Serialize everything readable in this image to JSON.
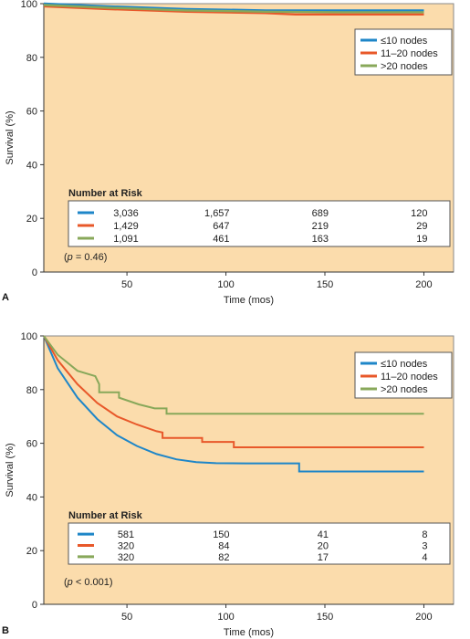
{
  "colors": {
    "background": "#fbdcac",
    "series": [
      "#1e86c8",
      "#e8582a",
      "#88a85a"
    ]
  },
  "chart_data": [
    {
      "type": "line",
      "panel_label": "A",
      "xlabel": "Time (mos)",
      "ylabel": "Survival (%)",
      "xlim": [
        8,
        215
      ],
      "ylim": [
        0,
        100
      ],
      "xticks": [
        50,
        100,
        150,
        200
      ],
      "yticks": [
        0,
        20,
        40,
        60,
        80,
        100
      ],
      "legend_position": "top-right",
      "p_text": "(p = 0.46)",
      "p_letter": "p",
      "p_rest": " = 0.46)",
      "series": [
        {
          "name": "≤10 nodes",
          "color": "#1e86c8",
          "x": [
            8,
            40,
            80,
            120,
            160,
            200
          ],
          "y": [
            100,
            99,
            98,
            97.5,
            97.5,
            97.5
          ]
        },
        {
          "name": "11–20 nodes",
          "color": "#e8582a",
          "x": [
            8,
            40,
            80,
            120,
            135,
            160,
            200
          ],
          "y": [
            99,
            98,
            97,
            96.5,
            96,
            96,
            96
          ]
        },
        {
          "name": ">20 nodes",
          "color": "#88a85a",
          "x": [
            8,
            40,
            80,
            120,
            160,
            200
          ],
          "y": [
            99.5,
            98.5,
            97.5,
            97,
            96.8,
            96.8
          ]
        }
      ],
      "risk_table": {
        "title": "Number at Risk",
        "rows": [
          [
            "3,036",
            "1,657",
            "689",
            "120"
          ],
          [
            "1,429",
            "647",
            "219",
            "29"
          ],
          [
            "1,091",
            "461",
            "163",
            "19"
          ]
        ]
      }
    },
    {
      "type": "line",
      "panel_label": "B",
      "xlabel": "Time (mos)",
      "ylabel": "Survival (%)",
      "xlim": [
        8,
        215
      ],
      "ylim": [
        0,
        100
      ],
      "xticks": [
        50,
        100,
        150,
        200
      ],
      "yticks": [
        0,
        20,
        40,
        60,
        80,
        100
      ],
      "legend_position": "top-right",
      "p_text": "(p < 0.001)",
      "p_letter": "p",
      "p_rest": " < 0.001)",
      "series": [
        {
          "name": "≤10 nodes",
          "color": "#1e86c8",
          "x": [
            8,
            15,
            25,
            35,
            45,
            55,
            65,
            75,
            85,
            95,
            110,
            137,
            137,
            200
          ],
          "y": [
            100,
            88,
            77,
            69,
            63,
            59,
            56,
            54,
            53,
            52.6,
            52.5,
            52.5,
            49.5,
            49.5
          ]
        },
        {
          "name": "11–20 nodes",
          "color": "#e8582a",
          "x": [
            8,
            15,
            25,
            35,
            45,
            55,
            65,
            68,
            68,
            88,
            88,
            104,
            104,
            200
          ],
          "y": [
            100,
            91,
            82,
            75,
            70,
            67,
            64.5,
            64,
            62,
            62,
            60.5,
            60.5,
            58.5,
            58.5
          ]
        },
        {
          "name": ">20 nodes",
          "color": "#88a85a",
          "x": [
            8,
            15,
            25,
            34,
            36,
            36,
            46,
            46,
            56,
            64,
            70,
            70,
            200
          ],
          "y": [
            100,
            93,
            87,
            85,
            82,
            79,
            79,
            77,
            74.5,
            73,
            73,
            71,
            71
          ]
        }
      ],
      "risk_table": {
        "title": "Number at Risk",
        "rows": [
          [
            "581",
            "150",
            "41",
            "8"
          ],
          [
            "320",
            "84",
            "20",
            "3"
          ],
          [
            "320",
            "82",
            "17",
            "4"
          ]
        ]
      }
    }
  ]
}
